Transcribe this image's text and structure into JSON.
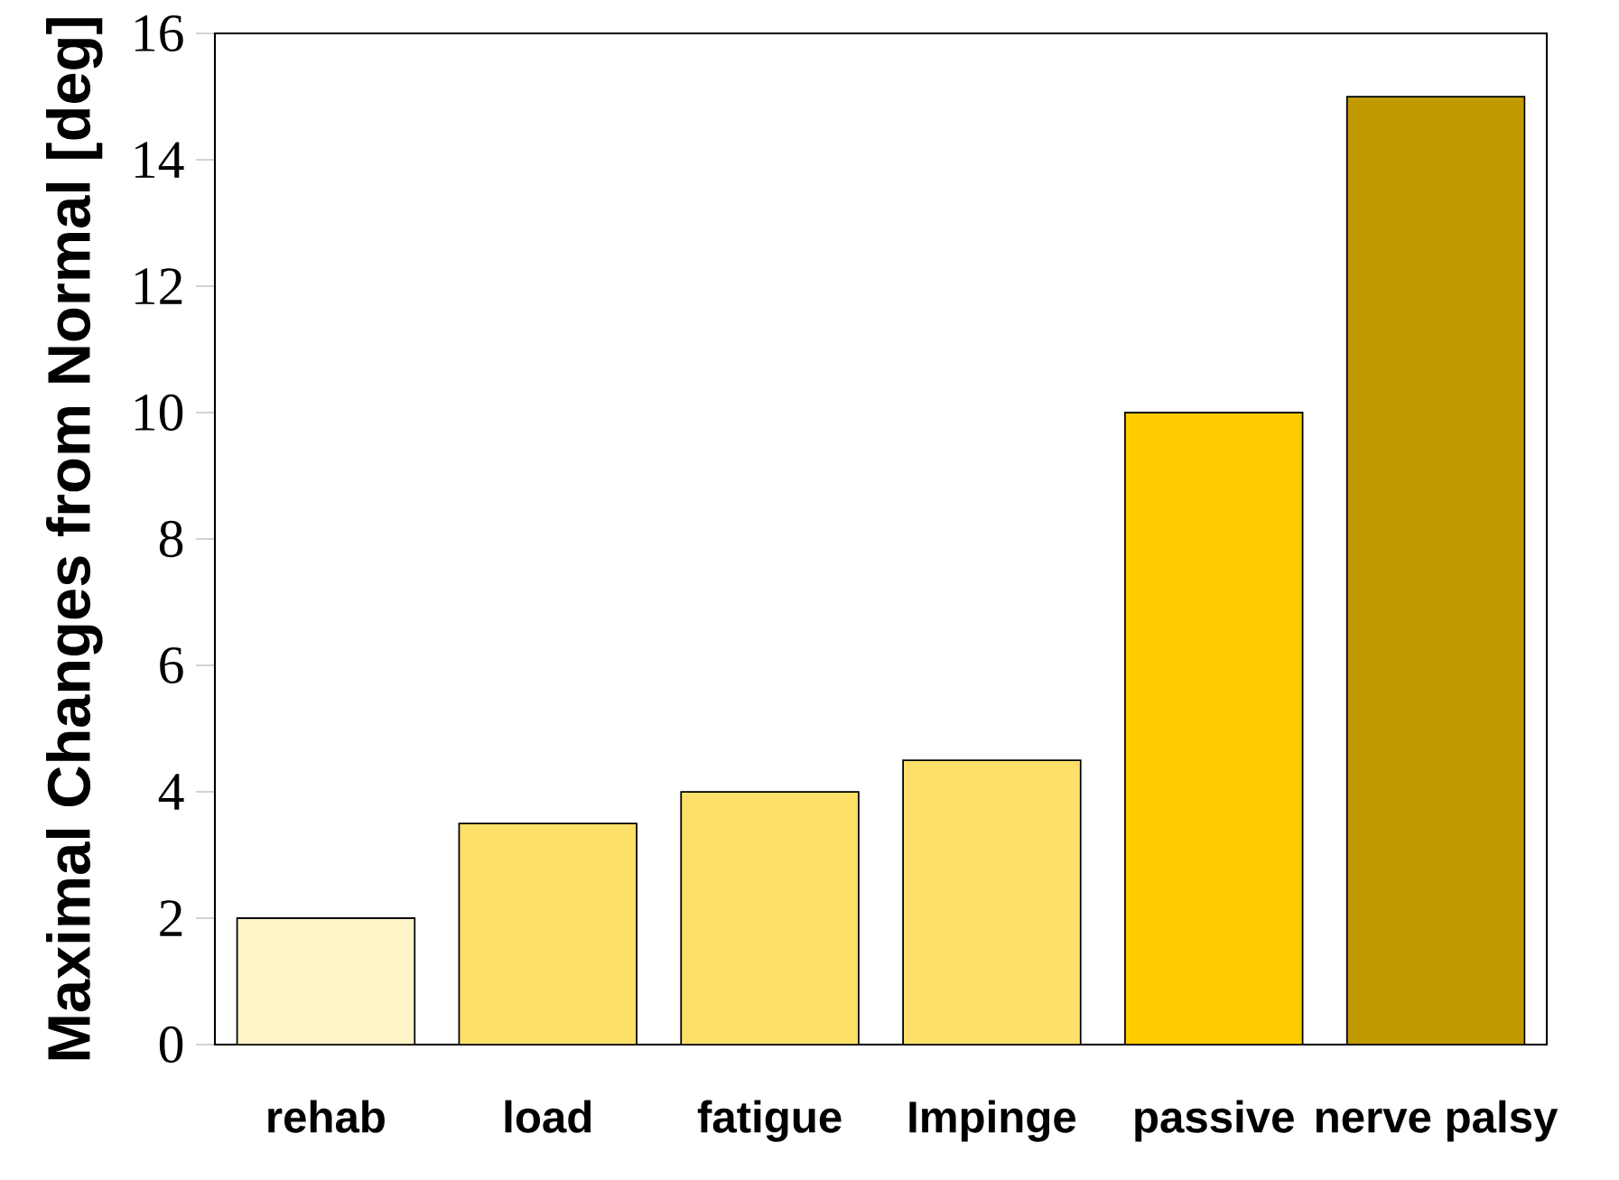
{
  "chart_data": {
    "type": "bar",
    "ylabel": "Maximal Changes from Normal [deg]",
    "categories": [
      "rehab",
      "load",
      "fatigue",
      "Impinge",
      "passive",
      "nerve palsy"
    ],
    "values": [
      2,
      3.5,
      4,
      4.5,
      10,
      15
    ],
    "colors": [
      "#fff4c8",
      "#fde068",
      "#fde068",
      "#fde068",
      "#ffcc00",
      "#c09a00"
    ],
    "ylim": [
      0,
      16
    ],
    "yticks": [
      0,
      2,
      4,
      6,
      8,
      10,
      12,
      14,
      16
    ],
    "grid": false
  }
}
